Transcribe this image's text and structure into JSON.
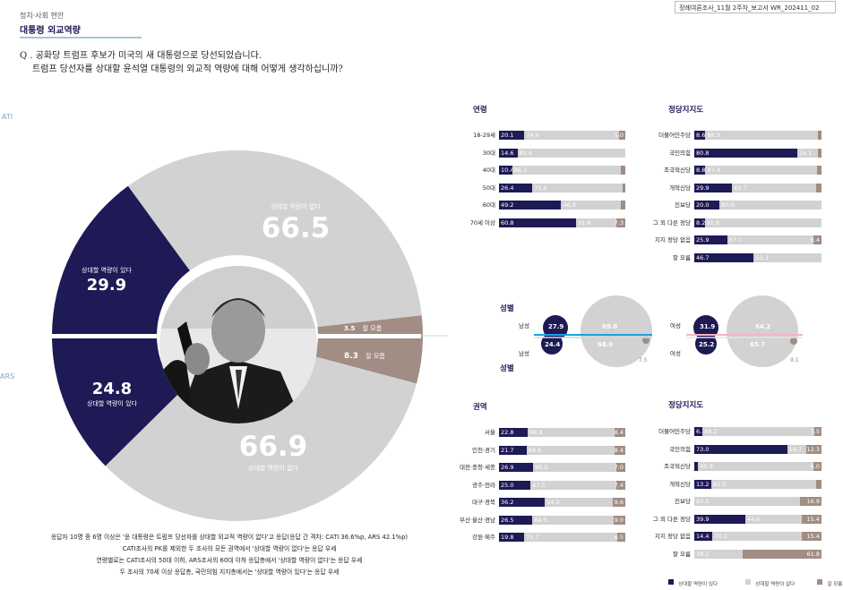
{
  "header": {
    "category": "정치·사회 현안",
    "title": "대통령 외교역량",
    "report_id": "정례여론조사_11월 2주차_보고서  WR_202411_02",
    "question_line1": "Q . 공화당 트럼프 후보가 미국의 새 대통령으로 당선되었습니다.",
    "question_line2": "트럼프 당선자를 상대할 윤석열 대통령의 외교적 역량에 대해 어떻게 생각하십니까?",
    "side_cati": "ATI",
    "side_ars": "ARS"
  },
  "colors": {
    "navy": "#1d1a55",
    "gray": "#d2d2d2",
    "brown": "#a18d83",
    "pink": "#f0b7c8",
    "cyan": "#1ea0e0"
  },
  "chart_data": [
    {
      "type": "pie",
      "name_shown": "CATI",
      "slices": [
        {
          "label": "상대할 역량이 있다",
          "value": 29.9,
          "color": "#1d1a55"
        },
        {
          "label": "상대할 역량이 없다",
          "value": 66.5,
          "color": "#d2d2d2"
        },
        {
          "label": "잘 모름",
          "value": 3.5,
          "color": "#a18d83"
        }
      ]
    },
    {
      "type": "pie",
      "name_shown": "ARS",
      "slices": [
        {
          "label": "상대할 역량이 있다",
          "value": 24.8,
          "color": "#1d1a55"
        },
        {
          "label": "상대할 역량이 없다",
          "value": 66.9,
          "color": "#d2d2d2"
        },
        {
          "label": "잘 모름",
          "value": 8.3,
          "color": "#a18d83"
        }
      ]
    },
    {
      "type": "bar",
      "title": "연령",
      "categories": [
        "18-29세",
        "30대",
        "40대",
        "50대",
        "60대",
        "70세 이상"
      ],
      "series": [
        {
          "name": "상대할 역량이 있다",
          "values": [
            20.1,
            14.6,
            10.4,
            26.4,
            49.2,
            60.8
          ]
        },
        {
          "name": "상대할 역량이 없다",
          "values": [
            74.9,
            85.4,
            86.3,
            71.6,
            46.9,
            31.8
          ]
        },
        {
          "name": "잘 모름",
          "values": [
            5.0,
            0,
            3.3,
            2.0,
            3.9,
            7.3
          ]
        }
      ],
      "labels": [
        [
          "20.1",
          "74.9",
          "5.0"
        ],
        [
          "14.6",
          "85.4",
          ""
        ],
        [
          "10.4",
          "86.3",
          ""
        ],
        [
          "26.4",
          "71.6",
          ""
        ],
        [
          "49.2",
          "46.9",
          ""
        ],
        [
          "60.8",
          "31.8",
          "7.3"
        ]
      ]
    },
    {
      "type": "bar",
      "title": "정당지지도",
      "categories": [
        "더불어민주당",
        "국민의힘",
        "조국혁신당",
        "개혁신당",
        "진보당",
        "그 외 다른 정당",
        "지지 정당 없음",
        "잘 모름"
      ],
      "series": [
        {
          "name": "상대할 역량이 있다",
          "values": [
            8.6,
            80.8,
            8.8,
            29.9,
            20.0,
            8.2,
            25.9,
            46.7
          ]
        },
        {
          "name": "상대할 역량이 없다",
          "values": [
            88.3,
            16.1,
            87.4,
            65.7,
            80.0,
            91.8,
            67.7,
            53.3
          ]
        },
        {
          "name": "잘 모름",
          "values": [
            3.1,
            3.1,
            3.8,
            4.4,
            0,
            0,
            6.4,
            0
          ]
        }
      ],
      "labels": [
        [
          "8.6",
          "88.3",
          ""
        ],
        [
          "80.8",
          "16.1",
          ""
        ],
        [
          "8.8",
          "87.4",
          ""
        ],
        [
          "29.9",
          "65.7",
          ""
        ],
        [
          "20.0",
          "80.0",
          ""
        ],
        [
          "8.2",
          "91.8",
          ""
        ],
        [
          "25.9",
          "67.7",
          "6.4"
        ],
        [
          "46.7",
          "53.3",
          ""
        ]
      ]
    },
    {
      "type": "bubble",
      "title": "성별",
      "groups": [
        {
          "label": "남성",
          "cati": [
            27.9,
            69.0
          ],
          "ars": [
            24.4,
            68.0,
            7.5
          ]
        },
        {
          "label": "여성",
          "cati": [
            31.9,
            64.2
          ],
          "ars": [
            25.2,
            65.7,
            9.1
          ]
        }
      ]
    },
    {
      "type": "bar",
      "title": "권역",
      "categories": [
        "서울",
        "인천·경기",
        "대전·충청·세종",
        "광주·전라",
        "대구·경북",
        "부산·울산·경남",
        "강원·제주"
      ],
      "series": [
        {
          "name": "상대할 역량이 있다",
          "values": [
            22.8,
            21.7,
            26.9,
            25.0,
            36.2,
            26.5,
            19.8
          ]
        },
        {
          "name": "상대할 역량이 없다",
          "values": [
            68.8,
            69.9,
            66.0,
            67.5,
            54.3,
            64.5,
            73.7
          ]
        },
        {
          "name": "잘 모름",
          "values": [
            8.4,
            8.4,
            7.0,
            7.4,
            9.6,
            9.0,
            6.5
          ]
        }
      ],
      "labels": [
        [
          "22.8",
          "68.8",
          "8.4"
        ],
        [
          "21.7",
          "69.9",
          "8.4"
        ],
        [
          "26.9",
          "66.0",
          "7.0"
        ],
        [
          "25.0",
          "67.5",
          "7.4"
        ],
        [
          "36.2",
          "54.3",
          "9.6"
        ],
        [
          "26.5",
          "64.5",
          "9.0"
        ],
        [
          "19.8",
          "73.7",
          "6.5"
        ]
      ]
    },
    {
      "type": "bar",
      "title": "정당지지도",
      "categories": [
        "더불어민주당",
        "국민의힘",
        "조국혁신당",
        "개혁신당",
        "진보당",
        "그 외 다른 정당",
        "지지 정당 없음",
        "잘 모름"
      ],
      "series": [
        {
          "name": "상대할 역량이 있다",
          "values": [
            6.3,
            73.0,
            3.1,
            13.2,
            0,
            39.9,
            14.4,
            0
          ]
        },
        {
          "name": "상대할 역량이 없다",
          "values": [
            88.2,
            14.7,
            90.9,
            82.5,
            83.1,
            44.6,
            70.2,
            38.2
          ]
        },
        {
          "name": "잘 모름",
          "values": [
            5.5,
            12.3,
            6.0,
            4.3,
            16.9,
            15.4,
            15.4,
            61.8
          ]
        }
      ],
      "labels": [
        [
          "6.3",
          "88.2",
          "5.5"
        ],
        [
          "73.0",
          "14.7",
          "12.3"
        ],
        [
          "",
          "90.9",
          "6.0"
        ],
        [
          "13.2",
          "82.5",
          ""
        ],
        [
          "",
          "83.1",
          "16.9"
        ],
        [
          "39.9",
          "44.6",
          "15.4"
        ],
        [
          "14.4",
          "70.2",
          "15.4"
        ],
        [
          "",
          "38.2",
          "61.8"
        ]
      ]
    }
  ],
  "pie_labels": {
    "cati_yes_label": "상대할 역량이 있다",
    "cati_yes_value": "29.9",
    "cati_no_label": "상대할 역량이 없다",
    "cati_no_value": "66.5",
    "cati_dk_label": "잘 모름",
    "cati_dk_value": "3.5",
    "ars_yes_label": "상대할 역량이 있다",
    "ars_yes_value": "24.8",
    "ars_no_label": "상대할 역량이 없다",
    "ars_no_value": "66.9",
    "ars_dk_label": "잘 모름",
    "ars_dk_value": "8.3"
  },
  "gender": {
    "title_top": "성별",
    "title_bottom": "성별",
    "male": "남성",
    "female": "여성",
    "m_cati_yes": "27.9",
    "m_cati_no": "69.0",
    "m_ars_yes": "24.4",
    "m_ars_no": "68.0",
    "m_ars_dk": "7.5",
    "f_cati_yes": "31.9",
    "f_cati_no": "64.2",
    "f_ars_yes": "25.2",
    "f_ars_no": "65.7",
    "f_ars_dk": "9.1"
  },
  "legend": {
    "yes": "상대할 역량이 있다",
    "no": "상대할 역량이 없다",
    "dk": "잘 모름"
  },
  "notes": [
    "응답자 10명 중 6명 이상은 '윤 대통령은 트럼프 당선자를 상대할 외교적 역량이 없다'고 응답(응답 간 격차: CATI 36.6%p, ARS 42.1%p)",
    "CATI조사의 PK를 제외한 두 조사의 모든 권역에서 '상대할 역량이 없다'는 응답 우세",
    "연령별로는 CATI조사의 50대 이하, ARS조사의 60대 이하 응답층에서 '상대할 역량이 없다'는 응답 우세",
    "두 조사의 70세 이상 응답층, 국민의힘 지지층에서는 '상대할 역량이 있다'는 응답 우세"
  ]
}
